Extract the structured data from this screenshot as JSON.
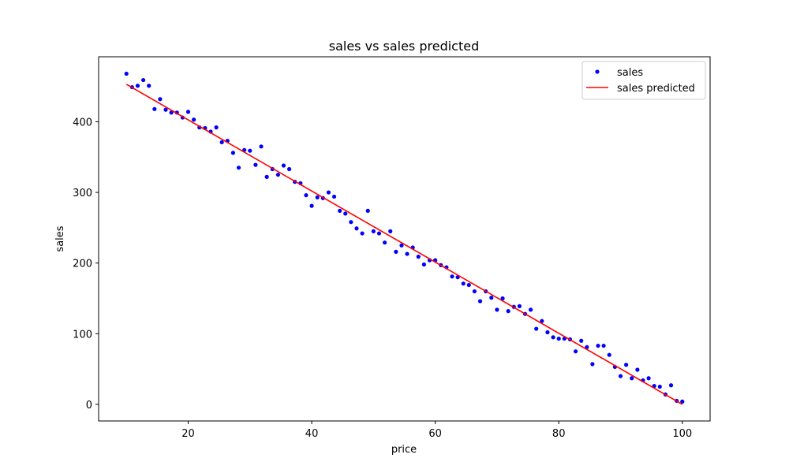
{
  "chart_data": {
    "type": "scatter",
    "title": "sales vs sales predicted",
    "xlabel": "price",
    "ylabel": "sales",
    "xlim": [
      5.5,
      104.5
    ],
    "ylim": [
      -23.5,
      492
    ],
    "xticks": [
      20,
      40,
      60,
      80,
      100
    ],
    "yticks": [
      0,
      100,
      200,
      300,
      400
    ],
    "grid": false,
    "legend_position": "top-right",
    "series": [
      {
        "name": "sales",
        "kind": "scatter",
        "color": "#0000ff",
        "x": [
          10,
          10.91,
          11.82,
          12.73,
          13.64,
          14.55,
          15.45,
          16.36,
          17.27,
          18.18,
          19.09,
          20,
          20.91,
          21.82,
          22.73,
          23.64,
          24.55,
          25.45,
          26.36,
          27.27,
          28.18,
          29.09,
          30,
          30.91,
          31.82,
          32.73,
          33.64,
          34.55,
          35.45,
          36.36,
          37.27,
          38.18,
          39.09,
          40,
          40.91,
          41.82,
          42.73,
          43.64,
          44.55,
          45.45,
          46.36,
          47.27,
          48.18,
          49.09,
          50,
          50.91,
          51.82,
          52.73,
          53.64,
          54.55,
          55.45,
          56.36,
          57.27,
          58.18,
          59.09,
          60,
          60.91,
          61.82,
          62.73,
          63.64,
          64.55,
          65.45,
          66.36,
          67.27,
          68.18,
          69.09,
          70,
          70.91,
          71.82,
          72.73,
          73.64,
          74.55,
          75.45,
          76.36,
          77.27,
          78.18,
          79.09,
          80,
          80.91,
          81.82,
          82.73,
          83.64,
          84.55,
          85.45,
          86.36,
          87.27,
          88.18,
          89.09,
          90,
          90.91,
          91.82,
          92.73,
          93.64,
          94.55,
          95.45,
          96.36,
          97.27,
          98.18,
          99.09,
          100
        ],
        "y": [
          468,
          449,
          451,
          459,
          451,
          418,
          432,
          417,
          413,
          413,
          406,
          414,
          403,
          392,
          391,
          386,
          392,
          371,
          373,
          356,
          335,
          360,
          359,
          339,
          365,
          322,
          333,
          325,
          338,
          333,
          315,
          313,
          296,
          281,
          293,
          292,
          300,
          294,
          274,
          270,
          258,
          249,
          242,
          274,
          245,
          242,
          229,
          245,
          216,
          225,
          213,
          222,
          209,
          198,
          204,
          204,
          197,
          194,
          181,
          180,
          171,
          169,
          160,
          146,
          160,
          151,
          134,
          150,
          132,
          138,
          139,
          128,
          134,
          107,
          118,
          102,
          95,
          93,
          93,
          92,
          75,
          90,
          81,
          57,
          83,
          83,
          70,
          53,
          40,
          56,
          37,
          49,
          34,
          37,
          26,
          25,
          14,
          27,
          5,
          4
        ]
      },
      {
        "name": "sales predicted",
        "kind": "line",
        "color": "#ff0000",
        "x": [
          10,
          100
        ],
        "y": [
          453,
          0
        ]
      }
    ]
  }
}
